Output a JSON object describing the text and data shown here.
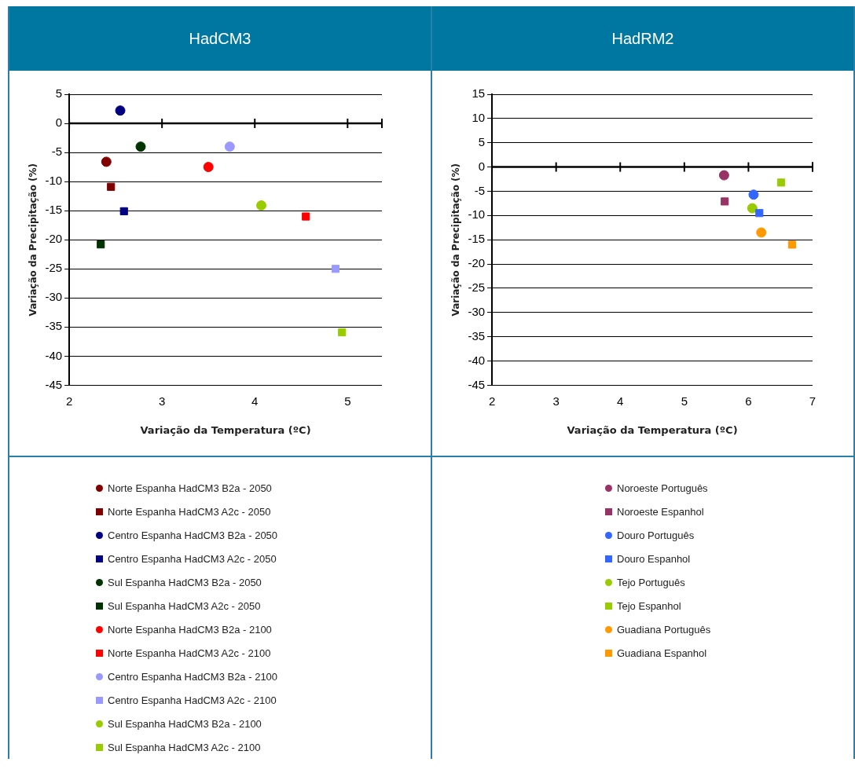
{
  "chart_data": [
    {
      "type": "scatter",
      "title": "HadCM3",
      "xlabel": "Variação da Temperatura (ºC)",
      "ylabel": "Variação da Precipitação (%)",
      "xlim": [
        2,
        5.37
      ],
      "xticks": [
        2,
        3,
        4,
        5
      ],
      "ylim": [
        -45,
        5
      ],
      "yticks": [
        -45,
        -40,
        -35,
        -30,
        -25,
        -20,
        -15,
        -10,
        -5,
        0,
        5
      ],
      "grid": "y",
      "legend": "bottom",
      "series": [
        {
          "name": "Norte Espanha HadCM3 B2a - 2050",
          "color": "#800000",
          "marker": "circle",
          "x": [
            2.4
          ],
          "values": [
            -6.6
          ]
        },
        {
          "name": "Norte Espanha HadCM3 A2c - 2050",
          "color": "#800000",
          "marker": "square",
          "x": [
            2.45
          ],
          "values": [
            -10.9
          ]
        },
        {
          "name": "Centro Espanha HadCM3 B2a - 2050",
          "color": "#000080",
          "marker": "circle",
          "x": [
            2.55
          ],
          "values": [
            2.2
          ]
        },
        {
          "name": "Centro Espanha HadCM3 A2c - 2050",
          "color": "#000080",
          "marker": "square",
          "x": [
            2.59
          ],
          "values": [
            -15.1
          ]
        },
        {
          "name": "Sul Espanha HadCM3 B2a - 2050",
          "color": "#003300",
          "marker": "circle",
          "x": [
            2.77
          ],
          "values": [
            -4.0
          ]
        },
        {
          "name": "Sul Espanha HadCM3 A2c - 2050",
          "color": "#003300",
          "marker": "square",
          "x": [
            2.34
          ],
          "values": [
            -20.8
          ]
        },
        {
          "name": "Norte Espanha HadCM3 B2a - 2100",
          "color": "#ff0000",
          "marker": "circle",
          "x": [
            3.5
          ],
          "values": [
            -7.5
          ]
        },
        {
          "name": "Norte Espanha HadCM3 A2c - 2100",
          "color": "#ff0000",
          "marker": "square",
          "x": [
            4.55
          ],
          "values": [
            -16.0
          ]
        },
        {
          "name": "Centro Espanha HadCM3 B2a - 2100",
          "color": "#9999ff",
          "marker": "circle",
          "x": [
            3.73
          ],
          "values": [
            -4.0
          ]
        },
        {
          "name": "Centro Espanha HadCM3 A2c - 2100",
          "color": "#9999ff",
          "marker": "square",
          "x": [
            4.87
          ],
          "values": [
            -25.0
          ]
        },
        {
          "name": "Sul Espanha HadCM3 B2a - 2100",
          "color": "#99cc00",
          "marker": "circle",
          "x": [
            4.07
          ],
          "values": [
            -14.1
          ]
        },
        {
          "name": "Sul Espanha HadCM3 A2c - 2100",
          "color": "#99cc00",
          "marker": "square",
          "x": [
            4.94
          ],
          "values": [
            -35.9
          ]
        }
      ]
    },
    {
      "type": "scatter",
      "title": "HadRM2",
      "xlabel": "Variação da Temperatura (ºC)",
      "ylabel": "Variação da Precipitação (%)",
      "xlim": [
        2,
        7
      ],
      "xticks": [
        2,
        3,
        4,
        5,
        6,
        7
      ],
      "ylim": [
        -45,
        15
      ],
      "yticks": [
        -45,
        -40,
        -35,
        -30,
        -25,
        -20,
        -15,
        -10,
        -5,
        0,
        5,
        10,
        15
      ],
      "grid": "y",
      "legend": "bottom",
      "series": [
        {
          "name": "Noroeste Português",
          "color": "#993366",
          "marker": "circle",
          "x": [
            5.62
          ],
          "values": [
            -1.7
          ]
        },
        {
          "name": "Noroeste Espanhol",
          "color": "#993366",
          "marker": "square",
          "x": [
            5.63
          ],
          "values": [
            -7.1
          ]
        },
        {
          "name": "Douro Português",
          "color": "#3366ff",
          "marker": "circle",
          "x": [
            6.08
          ],
          "values": [
            -5.7
          ]
        },
        {
          "name": "Douro Espanhol",
          "color": "#3366ff",
          "marker": "square",
          "x": [
            6.17
          ],
          "values": [
            -9.5
          ]
        },
        {
          "name": "Tejo Português",
          "color": "#99cc00",
          "marker": "circle",
          "x": [
            6.06
          ],
          "values": [
            -8.5
          ]
        },
        {
          "name": "Tejo Espanhol",
          "color": "#99cc00",
          "marker": "square",
          "x": [
            6.51
          ],
          "values": [
            -3.2
          ]
        },
        {
          "name": "Guadiana Português",
          "color": "#ff9900",
          "marker": "circle",
          "x": [
            6.2
          ],
          "values": [
            -13.5
          ]
        },
        {
          "name": "Guadiana Espanhol",
          "color": "#ff9900",
          "marker": "square",
          "x": [
            6.68
          ],
          "values": [
            -16.0
          ]
        }
      ]
    }
  ]
}
